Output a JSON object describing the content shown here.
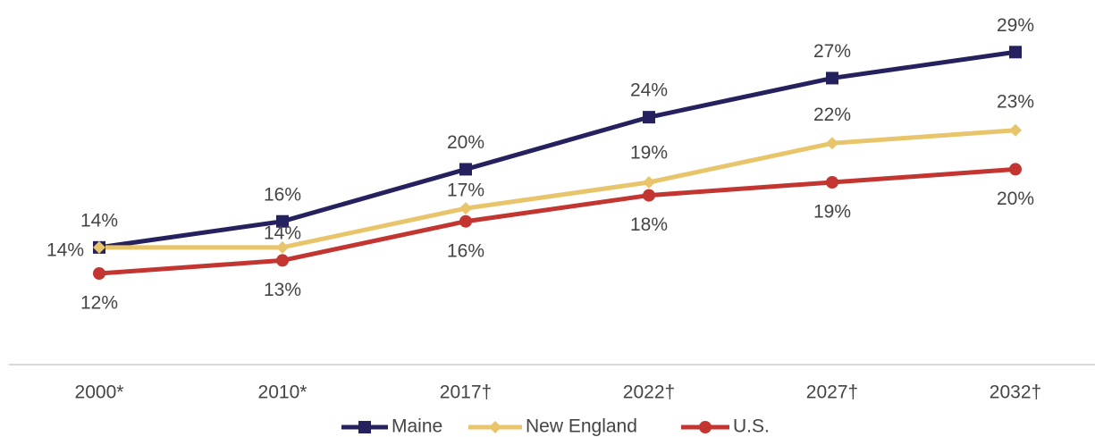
{
  "chart_data": {
    "type": "line",
    "categories": [
      "2000*",
      "2010*",
      "2017†",
      "2022†",
      "2027†",
      "2032†"
    ],
    "ylim": [
      5,
      33
    ],
    "series": [
      {
        "name": "Maine",
        "color": "#25215e",
        "marker": "square",
        "values": [
          14,
          16,
          20,
          24,
          27,
          29
        ],
        "value_labels": [
          "14%",
          "16%",
          "20%",
          "24%",
          "27%",
          "29%"
        ]
      },
      {
        "name": "New England",
        "color": "#e8c46a",
        "marker": "diamond",
        "values": [
          14,
          14,
          17,
          19,
          22,
          23
        ],
        "value_labels": [
          "14%",
          "14%",
          "17%",
          "19%",
          "22%",
          "23%"
        ]
      },
      {
        "name": "U.S.",
        "color": "#c33530",
        "marker": "circle",
        "values": [
          12,
          13,
          16,
          18,
          19,
          20
        ],
        "value_labels": [
          "12%",
          "13%",
          "16%",
          "18%",
          "19%",
          "20%"
        ]
      }
    ]
  }
}
